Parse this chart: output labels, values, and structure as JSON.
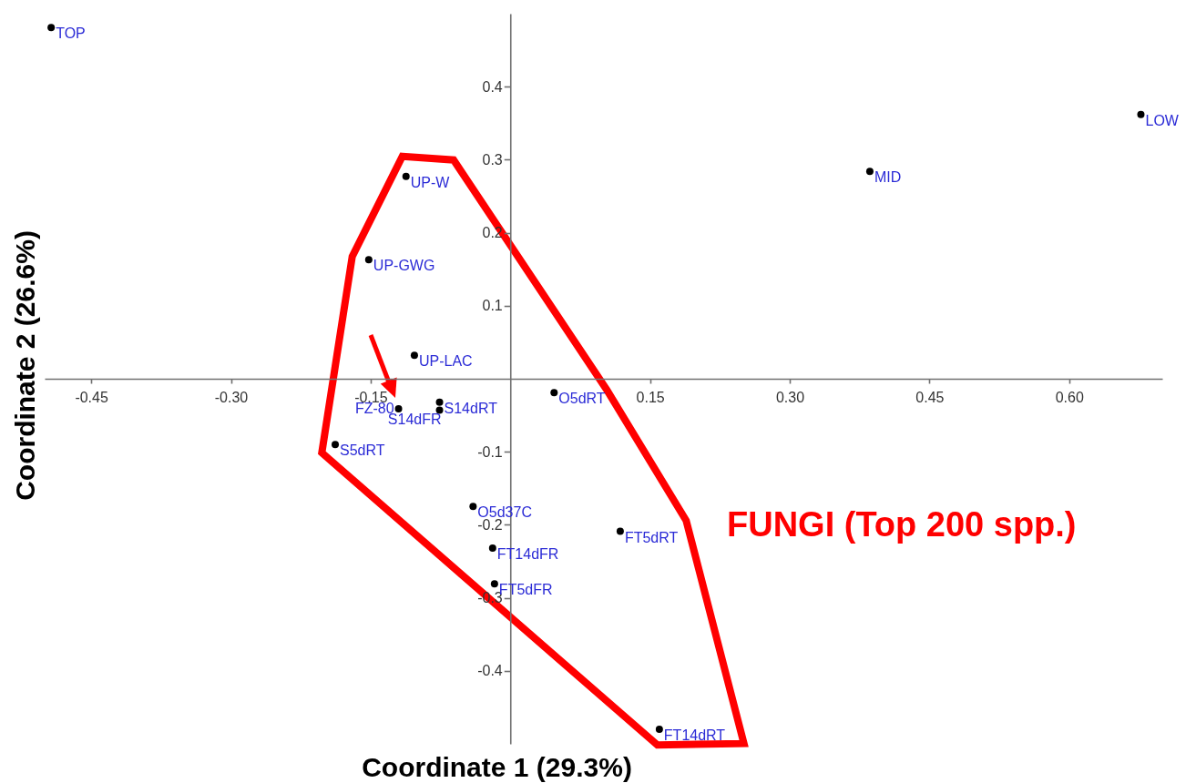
{
  "chart_data": {
    "type": "scatter",
    "xlabel": "Coordinate 1 (29.3%)",
    "ylabel": "Coordinate 2 (26.6%)",
    "marker": "circle",
    "x": [
      -0.493,
      -0.112,
      -0.152,
      -0.103,
      0.386,
      0.677,
      -0.12,
      -0.076,
      -0.076,
      -0.188,
      0.047,
      -0.04,
      -0.019,
      -0.017,
      0.118,
      0.16
    ],
    "series": [
      {
        "color": "#000000",
        "values": [
          0.481,
          0.277,
          0.163,
          0.032,
          0.284,
          0.362,
          -0.041,
          -0.032,
          -0.043,
          -0.09,
          -0.019,
          -0.175,
          -0.232,
          -0.281,
          -0.209,
          -0.48
        ]
      }
    ],
    "xlim": [
      -0.5,
      0.7
    ],
    "ylim": [
      -0.5,
      0.5
    ],
    "xticks": [
      -0.45,
      {
        "value": -0.3,
        "label": "-0.30"
      },
      -0.15,
      0.15,
      {
        "value": 0.3,
        "label": "0.30"
      },
      0.45,
      {
        "value": 0.6,
        "label": "0.60"
      }
    ],
    "yticks": [
      -0.4,
      -0.3,
      -0.2,
      -0.1,
      0.1,
      0.2,
      0.3,
      0.4
    ],
    "annotations": [
      {
        "text": "TOP",
        "x": -0.493,
        "y": 0.481
      },
      {
        "text": "UP-W",
        "x": -0.112,
        "y": 0.277
      },
      {
        "text": "UP-GWG",
        "x": -0.152,
        "y": 0.163
      },
      {
        "text": "UP-LAC",
        "x": -0.103,
        "y": 0.032
      },
      {
        "text": "MID",
        "x": 0.386,
        "y": 0.284
      },
      {
        "text": "LOW",
        "x": 0.677,
        "y": 0.362
      },
      {
        "text": "FZ-80",
        "x": -0.12,
        "y": -0.041
      },
      {
        "text": "S14dRT",
        "x": -0.076,
        "y": -0.032
      },
      {
        "text": "S14dFR",
        "x": -0.076,
        "y": -0.043
      },
      {
        "text": "S5dRT",
        "x": -0.188,
        "y": -0.09
      },
      {
        "text": "O5dRT",
        "x": 0.047,
        "y": -0.019
      },
      {
        "text": "O5d37C",
        "x": -0.04,
        "y": -0.175
      },
      {
        "text": "FT14dFR",
        "x": -0.019,
        "y": -0.232
      },
      {
        "text": "FT5dFR",
        "x": -0.017,
        "y": -0.281
      },
      {
        "text": "FT5dRT",
        "x": 0.118,
        "y": -0.209
      },
      {
        "text": "FT14dRT",
        "x": 0.16,
        "y": -0.48
      },
      "FUNGI (Top 200 spp.)"
    ]
  }
}
